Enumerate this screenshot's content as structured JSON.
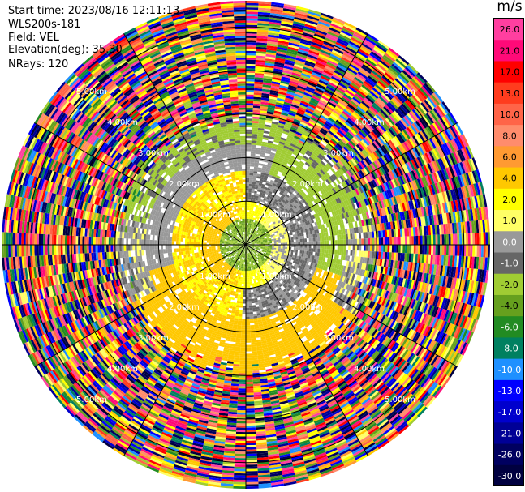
{
  "header": {
    "start_time": "Start time: 2023/08/16 12:11:13",
    "instrument": "WLS200s-181",
    "field": "Field: VEL",
    "elevation": "Elevation(deg): 35.30",
    "nrays": "NRays: 120"
  },
  "colorbar": {
    "unit": "m/s",
    "ticks": [
      "26.0",
      "21.0",
      "17.0",
      "13.0",
      "10.0",
      "8.0",
      "6.0",
      "4.0",
      "2.0",
      "1.0",
      "0.0",
      "-1.0",
      "-2.0",
      "-4.0",
      "-6.0",
      "-8.0",
      "-10.0",
      "-13.0",
      "-17.0",
      "-21.0",
      "-26.0",
      "-30.0"
    ],
    "colors": [
      "#ff3fa0",
      "#ff0a78",
      "#ff0000",
      "#ff3c1e",
      "#ff6448",
      "#ff8c6c",
      "#ff9a32",
      "#ffc800",
      "#ffff00",
      "#ffff66",
      "#999999",
      "#666666",
      "#a0cc33",
      "#66a01e",
      "#228b22",
      "#008060",
      "#1e90ff",
      "#0000ff",
      "#0000cd",
      "#000096",
      "#000060",
      "#000040"
    ]
  },
  "chart_data": {
    "type": "ppi-scan",
    "title": "",
    "field": "VEL",
    "unit": "m/s",
    "nrays": 120,
    "elevation_deg": 35.3,
    "range_rings_km": [
      1.0,
      2.0,
      3.0,
      4.0,
      5.0
    ],
    "range_ring_labels": [
      "1.00km",
      "2.00km",
      "3.00km",
      "4.00km",
      "5.00km"
    ],
    "spokes_deg": [
      0,
      30,
      60,
      90,
      120,
      150,
      180,
      210,
      240,
      270,
      300,
      330
    ],
    "max_range_km": 5.6,
    "mean_velocity_by_range": [
      {
        "range_km": 0.0,
        "velocity": -4.0
      },
      {
        "range_km": 0.6,
        "velocity": 2.0
      },
      {
        "range_km": 1.0,
        "velocity": 0.0
      },
      {
        "range_km": 1.7,
        "velocity": 4.0
      },
      {
        "range_km": 2.3,
        "velocity": -2.0
      },
      {
        "range_km": 3.0,
        "velocity": "noise"
      }
    ]
  }
}
